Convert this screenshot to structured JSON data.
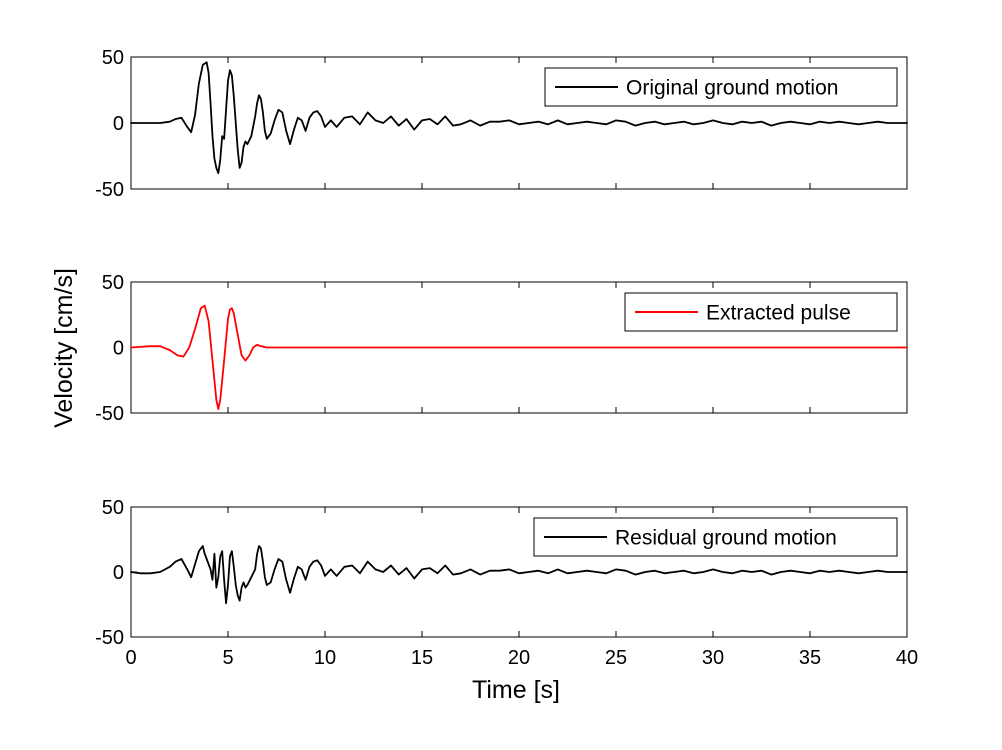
{
  "figure": {
    "xlabel": "Time [s]",
    "ylabel": "Velocity [cm/s]",
    "background": "#ffffff"
  },
  "chart_data": [
    {
      "type": "line",
      "panel": "top",
      "xlim": [
        0,
        40
      ],
      "ylim": [
        -50,
        50
      ],
      "yticks": [
        -50,
        0,
        50
      ],
      "xticks": [
        0,
        5,
        10,
        15,
        20,
        25,
        30,
        35,
        40
      ],
      "show_xtick_labels": false,
      "grid": false,
      "legend_position": "top-right",
      "series": [
        {
          "name": "Original ground motion",
          "color": "#000000",
          "x": [
            0,
            0.5,
            1.0,
            1.5,
            2.0,
            2.3,
            2.6,
            2.9,
            3.1,
            3.3,
            3.5,
            3.7,
            3.8,
            3.9,
            4.0,
            4.1,
            4.2,
            4.3,
            4.4,
            4.5,
            4.6,
            4.7,
            4.8,
            4.9,
            5.0,
            5.1,
            5.2,
            5.3,
            5.4,
            5.5,
            5.6,
            5.7,
            5.8,
            5.9,
            6.0,
            6.2,
            6.4,
            6.5,
            6.6,
            6.7,
            6.8,
            6.9,
            7.0,
            7.2,
            7.4,
            7.6,
            7.8,
            8.0,
            8.2,
            8.4,
            8.6,
            8.8,
            9.0,
            9.2,
            9.4,
            9.6,
            9.8,
            10.0,
            10.3,
            10.6,
            11.0,
            11.4,
            11.8,
            12.2,
            12.6,
            13.0,
            13.4,
            13.8,
            14.2,
            14.6,
            15.0,
            15.4,
            15.8,
            16.2,
            16.6,
            17.0,
            17.5,
            18.0,
            18.5,
            19.0,
            19.5,
            20.0,
            20.5,
            21.0,
            21.5,
            22.0,
            22.5,
            23.0,
            23.5,
            24.0,
            24.5,
            25.0,
            25.5,
            26.0,
            26.5,
            27.0,
            27.5,
            28.0,
            28.5,
            29.0,
            29.5,
            30.0,
            30.5,
            31.0,
            31.5,
            32.0,
            32.5,
            33.0,
            33.5,
            34.0,
            34.5,
            35.0,
            35.5,
            36.0,
            36.5,
            37.0,
            37.5,
            38.0,
            38.5,
            39.0,
            39.5,
            40.0
          ],
          "y": [
            0,
            0,
            0,
            0,
            1,
            3,
            4,
            -3,
            -7,
            6,
            30,
            44,
            45,
            46,
            38,
            15,
            -10,
            -27,
            -34,
            -38,
            -28,
            -10,
            -12,
            10,
            32,
            40,
            36,
            20,
            0,
            -20,
            -34,
            -30,
            -18,
            -14,
            -16,
            -10,
            5,
            15,
            21,
            18,
            8,
            -6,
            -12,
            -8,
            2,
            10,
            8,
            -6,
            -16,
            -5,
            4,
            2,
            -6,
            4,
            8,
            9,
            5,
            -3,
            2,
            -3,
            4,
            5,
            -1,
            8,
            2,
            0,
            5,
            -2,
            3,
            -5,
            2,
            3,
            -1,
            5,
            -2,
            -1,
            2,
            -2,
            1,
            1,
            2,
            -1,
            0,
            1,
            -1,
            2,
            -1,
            0,
            1,
            0,
            -1,
            2,
            1,
            -2,
            0,
            1,
            -1,
            0,
            1,
            -1,
            0,
            2,
            0,
            -1,
            1,
            0,
            1,
            -2,
            0,
            1,
            0,
            -1,
            1,
            0,
            1,
            0,
            -1,
            0,
            1,
            0,
            0,
            0
          ]
        }
      ]
    },
    {
      "type": "line",
      "panel": "middle",
      "xlim": [
        0,
        40
      ],
      "ylim": [
        -50,
        50
      ],
      "yticks": [
        -50,
        0,
        50
      ],
      "xticks": [
        0,
        5,
        10,
        15,
        20,
        25,
        30,
        35,
        40
      ],
      "show_xtick_labels": false,
      "grid": false,
      "legend_position": "top-right",
      "series": [
        {
          "name": "Extracted pulse",
          "color": "#ff0000",
          "x": [
            0,
            0.5,
            1.0,
            1.5,
            2.0,
            2.4,
            2.7,
            3.0,
            3.3,
            3.6,
            3.8,
            4.0,
            4.2,
            4.4,
            4.5,
            4.6,
            4.8,
            5.0,
            5.1,
            5.2,
            5.3,
            5.5,
            5.7,
            5.9,
            6.1,
            6.3,
            6.5,
            6.7,
            7.0,
            7.5,
            8.0,
            9.0,
            10.0,
            20.0,
            30.0,
            40.0
          ],
          "y": [
            0,
            0.5,
            1,
            1,
            -2,
            -6,
            -7,
            0,
            14,
            30,
            32,
            20,
            -10,
            -40,
            -47,
            -40,
            -10,
            22,
            29,
            30,
            26,
            10,
            -6,
            -10,
            -6,
            0,
            2,
            1,
            0,
            0,
            0,
            0,
            0,
            0,
            0,
            0
          ]
        }
      ]
    },
    {
      "type": "line",
      "panel": "bottom",
      "xlim": [
        0,
        40
      ],
      "ylim": [
        -50,
        50
      ],
      "yticks": [
        -50,
        0,
        50
      ],
      "xticks": [
        0,
        5,
        10,
        15,
        20,
        25,
        30,
        35,
        40
      ],
      "show_xtick_labels": true,
      "grid": false,
      "legend_position": "top-right",
      "series": [
        {
          "name": "Residual ground motion",
          "color": "#000000",
          "x": [
            0,
            0.5,
            1.0,
            1.5,
            2.0,
            2.3,
            2.6,
            2.9,
            3.1,
            3.3,
            3.5,
            3.7,
            3.8,
            3.9,
            4.0,
            4.1,
            4.2,
            4.3,
            4.4,
            4.5,
            4.6,
            4.7,
            4.8,
            4.9,
            5.0,
            5.1,
            5.2,
            5.3,
            5.4,
            5.5,
            5.6,
            5.7,
            5.8,
            5.9,
            6.0,
            6.2,
            6.4,
            6.5,
            6.6,
            6.7,
            6.8,
            6.9,
            7.0,
            7.2,
            7.4,
            7.6,
            7.8,
            8.0,
            8.2,
            8.4,
            8.6,
            8.8,
            9.0,
            9.2,
            9.4,
            9.6,
            9.8,
            10.0,
            10.3,
            10.6,
            11.0,
            11.4,
            11.8,
            12.2,
            12.6,
            13.0,
            13.4,
            13.8,
            14.2,
            14.6,
            15.0,
            15.4,
            15.8,
            16.2,
            16.6,
            17.0,
            17.5,
            18.0,
            18.5,
            19.0,
            19.5,
            20.0,
            20.5,
            21.0,
            21.5,
            22.0,
            22.5,
            23.0,
            23.5,
            24.0,
            24.5,
            25.0,
            25.5,
            26.0,
            26.5,
            27.0,
            27.5,
            28.0,
            28.5,
            29.0,
            29.5,
            30.0,
            30.5,
            31.0,
            31.5,
            32.0,
            32.5,
            33.0,
            33.5,
            34.0,
            34.5,
            35.0,
            35.5,
            36.0,
            36.5,
            37.0,
            37.5,
            38.0,
            38.5,
            39.0,
            39.5,
            40.0
          ],
          "y": [
            0,
            -1,
            -1,
            0,
            4,
            8,
            10,
            2,
            -4,
            6,
            16,
            20,
            14,
            10,
            6,
            2,
            -6,
            14,
            -12,
            -4,
            12,
            16,
            -6,
            -24,
            -10,
            12,
            16,
            4,
            -10,
            -18,
            -22,
            -12,
            -8,
            -12,
            -10,
            -4,
            2,
            14,
            20,
            18,
            8,
            -4,
            -10,
            -8,
            2,
            10,
            8,
            -6,
            -16,
            -5,
            4,
            2,
            -6,
            4,
            8,
            9,
            5,
            -3,
            2,
            -3,
            4,
            5,
            -1,
            8,
            2,
            0,
            5,
            -2,
            3,
            -5,
            2,
            3,
            -1,
            5,
            -2,
            -1,
            2,
            -2,
            1,
            1,
            2,
            -1,
            0,
            1,
            -1,
            2,
            -1,
            0,
            1,
            0,
            -1,
            2,
            1,
            -2,
            0,
            1,
            -1,
            0,
            1,
            -1,
            0,
            2,
            0,
            -1,
            1,
            0,
            1,
            -2,
            0,
            1,
            0,
            -1,
            1,
            0,
            1,
            0,
            -1,
            0,
            1,
            0,
            0,
            0
          ]
        }
      ]
    }
  ]
}
